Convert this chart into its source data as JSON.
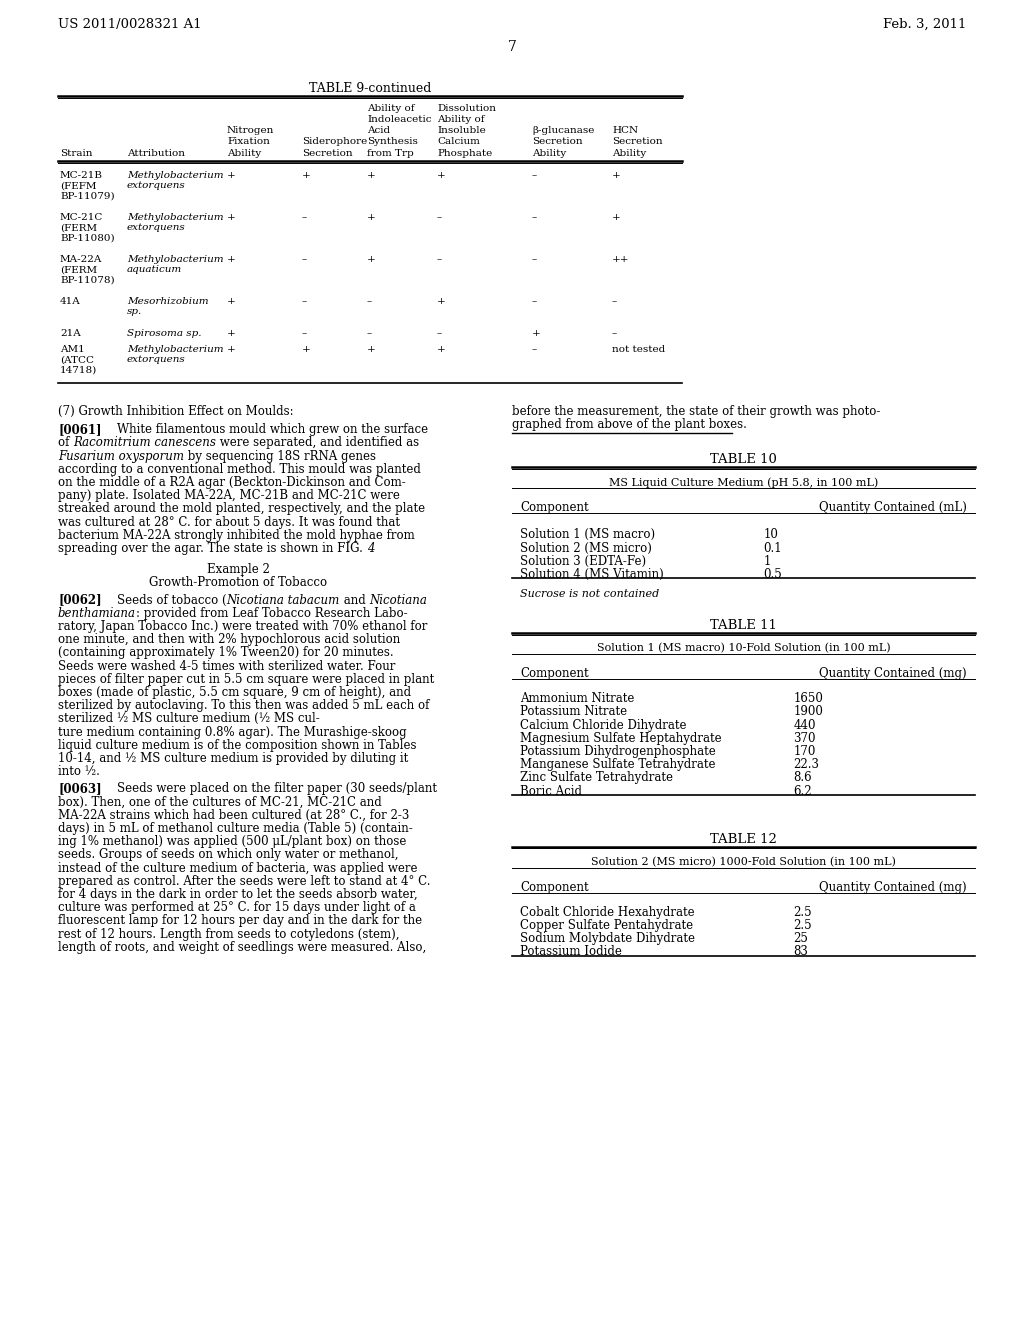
{
  "header_left": "US 2011/0028321 A1",
  "header_right": "Feb. 3, 2011",
  "page_number": "7",
  "table9_title": "TABLE 9-continued",
  "table9_rows": [
    [
      "MC-21B\n(FEFM\nBP-11079)",
      "Methylobacterium\nextorquens",
      "+",
      "+",
      "+",
      "+",
      "–",
      "+"
    ],
    [
      "MC-21C\n(FERM\nBP-11080)",
      "Methylobacterium\nextorquens",
      "+",
      "–",
      "+",
      "–",
      "–",
      "+"
    ],
    [
      "MA-22A\n(FERM\nBP-11078)",
      "Methylobacterium\naquaticum",
      "+",
      "–",
      "+",
      "–",
      "–",
      "++"
    ],
    [
      "41A",
      "Mesorhizobium\nsp.",
      "+",
      "–",
      "–",
      "+",
      "–",
      "–"
    ],
    [
      "21A",
      "Spirosoma sp.",
      "+",
      "–",
      "–",
      "–",
      "+",
      "–"
    ],
    [
      "AM1\n(ATCC\n14718)",
      "Methylobacterium\nextorquens",
      "+",
      "+",
      "+",
      "+",
      "–",
      "not tested"
    ]
  ],
  "right_col_intro": "before the measurement, the state of their growth was photo-\ngraphed from above of the plant boxes.",
  "table10_title": "TABLE 10",
  "table10_subtitle": "MS Liquid Culture Medium (pH 5.8, in 100 mL)",
  "table10_col1": "Component",
  "table10_col2": "Quantity Contained (mL)",
  "table10_rows": [
    [
      "Solution 1 (MS macro)",
      "10"
    ],
    [
      "Solution 2 (MS micro)",
      "0.1"
    ],
    [
      "Solution 3 (EDTA-Fe)",
      "1"
    ],
    [
      "Solution 4 (MS Vitamin)",
      "0.5"
    ]
  ],
  "table10_footnote": "Sucrose is not contained",
  "table11_title": "TABLE 11",
  "table11_subtitle": "Solution 1 (MS macro) 10-Fold Solution (in 100 mL)",
  "table11_col1": "Component",
  "table11_col2": "Quantity Contained (mg)",
  "table11_rows": [
    [
      "Ammonium Nitrate",
      "1650"
    ],
    [
      "Potassium Nitrate",
      "1900"
    ],
    [
      "Calcium Chloride Dihydrate",
      "440"
    ],
    [
      "Magnesium Sulfate Heptahydrate",
      "370"
    ],
    [
      "Potassium Dihydrogenphosphate",
      "170"
    ],
    [
      "Manganese Sulfate Tetrahydrate",
      "22.3"
    ],
    [
      "Zinc Sulfate Tetrahydrate",
      "8.6"
    ],
    [
      "Boric Acid",
      "6.2"
    ]
  ],
  "table12_title": "TABLE 12",
  "table12_subtitle": "Solution 2 (MS micro) 1000-Fold Solution (in 100 mL)",
  "table12_col1": "Component",
  "table12_col2": "Quantity Contained (mg)",
  "table12_rows": [
    [
      "Cobalt Chloride Hexahydrate",
      "2.5"
    ],
    [
      "Copper Sulfate Pentahydrate",
      "2.5"
    ],
    [
      "Sodium Molybdate Dihydrate",
      "25"
    ],
    [
      "Potassium Iodide",
      "83"
    ]
  ]
}
